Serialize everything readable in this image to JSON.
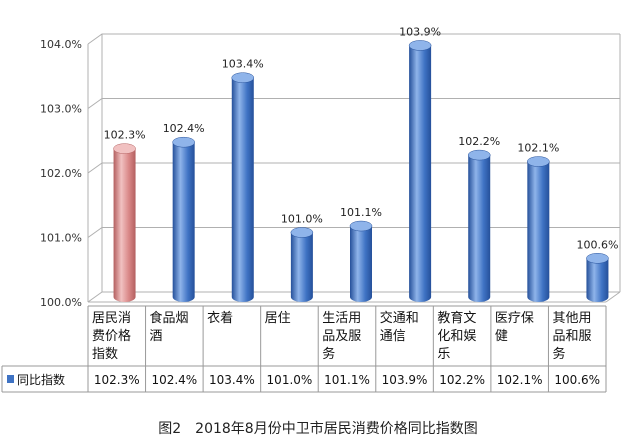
{
  "chart_data": {
    "type": "bar",
    "title": "",
    "xlabel": "",
    "ylabel": "",
    "ylim": [
      100.0,
      104.0
    ],
    "yticks": [
      "100.0%",
      "101.0%",
      "102.0%",
      "103.0%",
      "104.0%"
    ],
    "categories": [
      [
        "居民消",
        "费价格",
        "指数"
      ],
      [
        "食品烟",
        "酒"
      ],
      [
        "衣着"
      ],
      [
        "居住"
      ],
      [
        "生活用",
        "品及服",
        "务"
      ],
      [
        "交通和",
        "通信"
      ],
      [
        "教育文",
        "化和娱",
        "乐"
      ],
      [
        "医疗保",
        "健"
      ],
      [
        "其他用",
        "品和服",
        "务"
      ]
    ],
    "series": [
      {
        "name": "同比指数",
        "values": [
          102.3,
          102.4,
          103.4,
          101.0,
          101.1,
          103.9,
          102.2,
          102.1,
          100.6
        ],
        "bar_labels": [
          "102.3%",
          "102.4%",
          "103.4%",
          "101.0%",
          "101.1%",
          "103.9%",
          "102.2%",
          "102.1%",
          "100.6%"
        ],
        "table_values": [
          "102.3%",
          "102.4%",
          "103.4%",
          "101.0%",
          "101.1%",
          "103.9%",
          "102.2%",
          "102.1%",
          "100.6%"
        ]
      }
    ],
    "highlight_index": 0,
    "colors": {
      "bar": "#3f73c4",
      "bar_dark": "#25509a",
      "bar_light": "#8fb4ea",
      "highlight": "#d98787",
      "highlight_dark": "#b35f5f",
      "highlight_light": "#f1c1c1",
      "legend_marker": "#3f73c4",
      "grid": "#b0b0b0"
    },
    "grid": true,
    "legend": "table-left"
  },
  "caption": "图2　2018年8月份中卫市居民消费价格同比指数图"
}
